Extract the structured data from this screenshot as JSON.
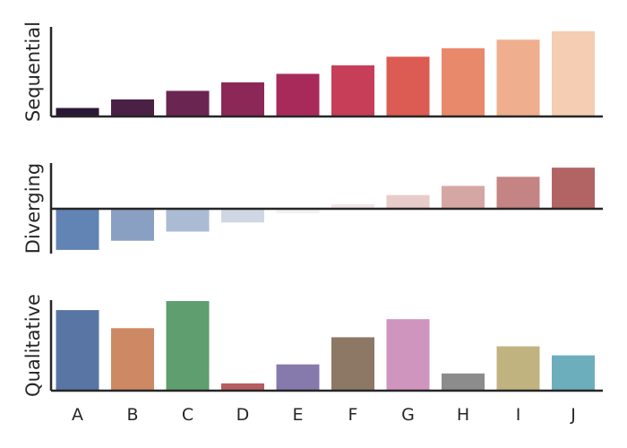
{
  "chart_data": [
    {
      "type": "bar",
      "palette": "sequential",
      "ylabel": "Sequential",
      "categories": [
        "A",
        "B",
        "C",
        "D",
        "E",
        "F",
        "G",
        "H",
        "I",
        "J"
      ],
      "values": [
        1,
        2,
        3,
        4,
        5,
        6,
        7,
        8,
        9,
        10
      ],
      "colors": [
        "#2a1934",
        "#4a2045",
        "#6a2550",
        "#8b2858",
        "#a82a5b",
        "#c63e58",
        "#dc5b52",
        "#e8896b",
        "#efae8e",
        "#f4cdb3"
      ],
      "ylim": [
        0,
        10.5
      ]
    },
    {
      "type": "bar",
      "palette": "diverging",
      "ylabel": "Diverging",
      "categories": [
        "A",
        "B",
        "C",
        "D",
        "E",
        "F",
        "G",
        "H",
        "I",
        "J"
      ],
      "values": [
        -4.5,
        -3.5,
        -2.5,
        -1.5,
        -0.5,
        0.5,
        1.5,
        2.5,
        3.5,
        4.5
      ],
      "colors": [
        "#6284b5",
        "#89a0c3",
        "#abbbd3",
        "#cfd7e4",
        "#f2f2f2",
        "#f3e8e7",
        "#e6ccca",
        "#d4a7a5",
        "#c48483",
        "#b26464"
      ],
      "ylim": [
        -5,
        5
      ]
    },
    {
      "type": "bar",
      "palette": "qualitative",
      "ylabel": "Qualitative",
      "categories": [
        "A",
        "B",
        "C",
        "D",
        "E",
        "F",
        "G",
        "H",
        "I",
        "J"
      ],
      "values": [
        8.9,
        6.9,
        9.9,
        0.8,
        2.9,
        5.9,
        7.9,
        1.9,
        4.9,
        3.9
      ],
      "colors": [
        "#5875a4",
        "#cc8963",
        "#5f9e6e",
        "#b55d60",
        "#857aab",
        "#8d7866",
        "#d095bf",
        "#8c8c8c",
        "#c1b37f",
        "#6daebd"
      ],
      "ylim": [
        0,
        10
      ]
    }
  ]
}
